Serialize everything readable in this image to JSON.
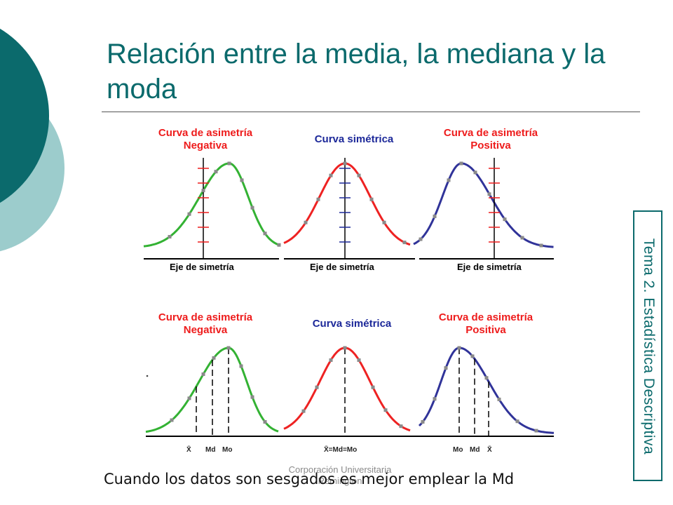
{
  "slide": {
    "title": "Relación entre la media, la mediana y la moda",
    "sidebar_label": "Tema 2. Estadística Descriptiva",
    "footer": "Corporación Universitaria Remington",
    "caption": "Cuando los datos son sesgados es mejor emplear la Md"
  },
  "colors": {
    "accent_dark": "#0b6a6c",
    "accent_light": "#9ccccc",
    "negative_curve": "#33b233",
    "symmetric_curve": "#ee2222",
    "positive_curve": "#303399",
    "label_red": "#ee1c1c",
    "label_blue": "#1c2899"
  },
  "diagram": {
    "top_row": [
      {
        "title_lines": [
          "Curva de asimetría",
          "Negativa"
        ],
        "axis_label": "Eje de simetría"
      },
      {
        "title_lines": [
          "Curva simétrica"
        ],
        "axis_label": "Eje de simetría"
      },
      {
        "title_lines": [
          "Curva de asimetría",
          "Positiva"
        ],
        "axis_label": "Eje de simetría"
      }
    ],
    "bottom_row": [
      {
        "title_lines": [
          "Curva de asimetría",
          "Negativa"
        ],
        "marker_labels": [
          "X̄",
          "Md",
          "Mo"
        ]
      },
      {
        "title_lines": [
          "Curva simétrica"
        ],
        "marker_labels": [
          "X̄=Md=Mo"
        ]
      },
      {
        "title_lines": [
          "Curva de asimetría",
          "Positiva"
        ],
        "marker_labels": [
          "Mo",
          "Md",
          "X̄"
        ]
      }
    ]
  }
}
